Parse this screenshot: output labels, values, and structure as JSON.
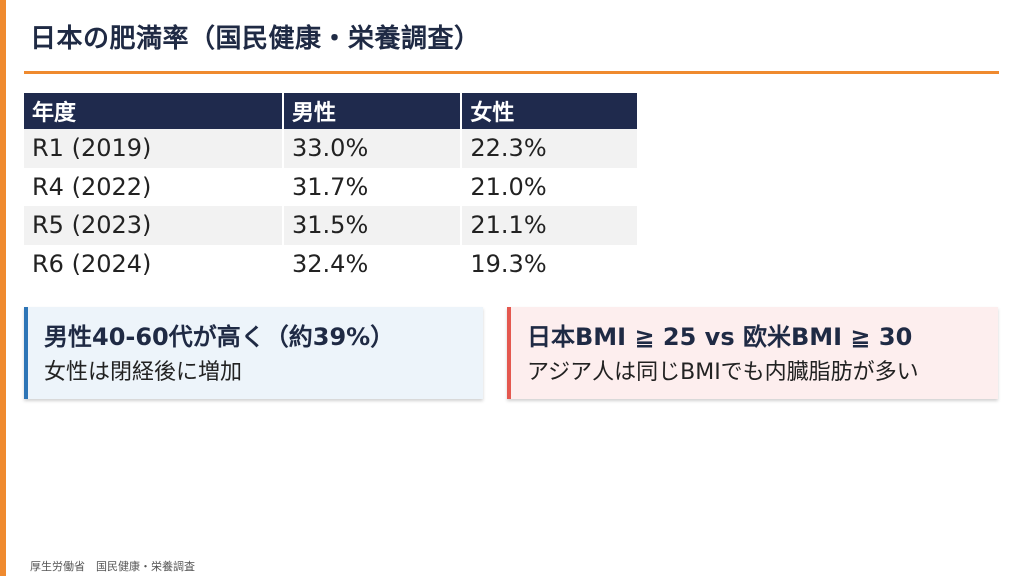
{
  "slide": {
    "title": "日本の肥満率（国民健康・栄養調査）"
  },
  "table": {
    "headers": [
      "年度",
      "男性",
      "女性"
    ],
    "rows": [
      [
        "R1 (2019)",
        "33.0%",
        "22.3%"
      ],
      [
        "R4 (2022)",
        "31.7%",
        "21.0%"
      ],
      [
        "R5 (2023)",
        "31.5%",
        "21.1%"
      ],
      [
        "R6 (2024)",
        "32.4%",
        "19.3%"
      ]
    ]
  },
  "callouts": {
    "left": {
      "headline": "男性40-60代が高く（約39%）",
      "subline": "女性は閉経後に増加"
    },
    "right": {
      "headline": "日本BMI ≧ 25 vs 欧米BMI ≧ 30",
      "subline": "アジア人は同じBMIでも内臓脂肪が多い"
    }
  },
  "footer": {
    "source": "厚生労働省　国民健康・栄養調査"
  },
  "colors": {
    "accent": "#ef8a2f",
    "table_header": "#1f2a4d",
    "callout_blue_border": "#2e75b6",
    "callout_red_border": "#e4584f"
  }
}
